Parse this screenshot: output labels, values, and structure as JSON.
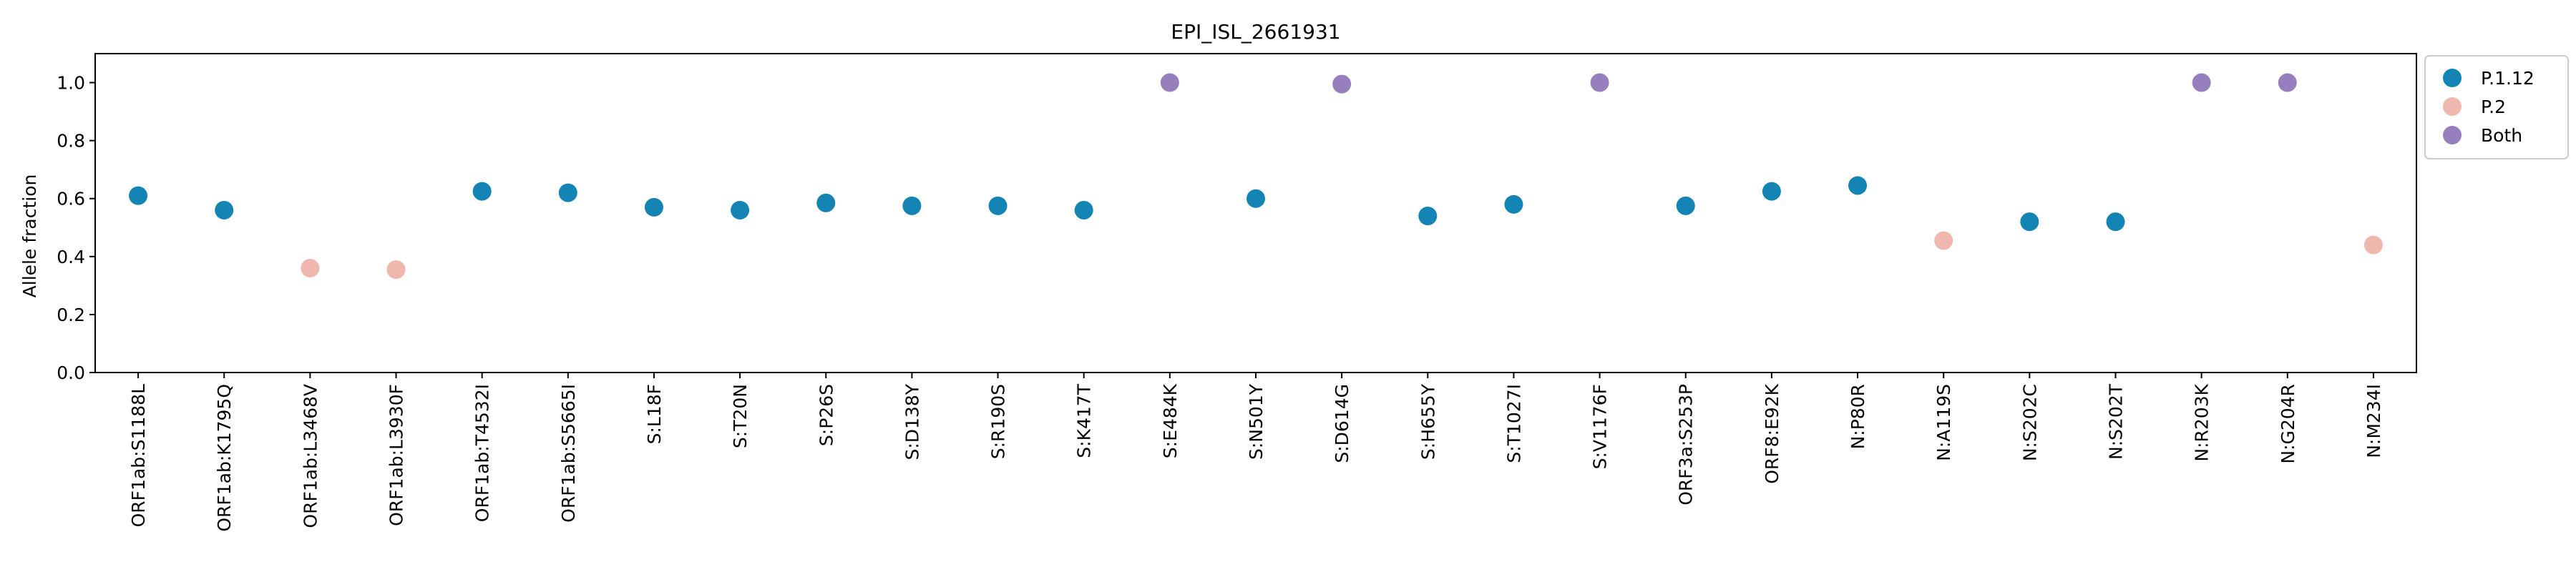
{
  "chart_data": {
    "type": "scatter",
    "title": "EPI_ISL_2661931",
    "xlabel": "",
    "ylabel": "Allele fraction",
    "ylim": [
      0,
      1.1
    ],
    "yticks": [
      0.0,
      0.2,
      0.4,
      0.6,
      0.8,
      1.0
    ],
    "ytick_labels": [
      "0.0",
      "0.2",
      "0.4",
      "0.6",
      "0.8",
      "1.0"
    ],
    "grid": false,
    "legend_position": "top-right, outside plot",
    "categories": [
      "ORF1ab:S1188L",
      "ORF1ab:K1795Q",
      "ORF1ab:L3468V",
      "ORF1ab:L3930F",
      "ORF1ab:T4532I",
      "ORF1ab:S5665I",
      "S:L18F",
      "S:T20N",
      "S:P26S",
      "S:D138Y",
      "S:R190S",
      "S:K417T",
      "S:E484K",
      "S:N501Y",
      "S:D614G",
      "S:H655Y",
      "S:T1027I",
      "S:V1176F",
      "ORF3a:S253P",
      "ORF8:E92K",
      "N:P80R",
      "N:A119S",
      "N:S202C",
      "N:S202T",
      "N:R203K",
      "N:G204R",
      "N:M234I"
    ],
    "values": [
      0.61,
      0.56,
      0.36,
      0.355,
      0.625,
      0.62,
      0.57,
      0.56,
      0.585,
      0.575,
      0.575,
      0.56,
      1.0,
      0.6,
      0.995,
      0.54,
      0.58,
      1.0,
      0.575,
      0.625,
      0.645,
      0.455,
      0.52,
      0.52,
      1.0,
      1.0,
      0.44
    ],
    "groups": [
      "P.1.12",
      "P.1.12",
      "P.2",
      "P.2",
      "P.1.12",
      "P.1.12",
      "P.1.12",
      "P.1.12",
      "P.1.12",
      "P.1.12",
      "P.1.12",
      "P.1.12",
      "Both",
      "P.1.12",
      "Both",
      "P.1.12",
      "P.1.12",
      "Both",
      "P.1.12",
      "P.1.12",
      "P.1.12",
      "P.2",
      "P.1.12",
      "P.1.12",
      "Both",
      "Both",
      "P.2"
    ],
    "series": [
      {
        "name": "P.1.12",
        "color": "#1384b3"
      },
      {
        "name": "P.2",
        "color": "#efb8ae"
      },
      {
        "name": "Both",
        "color": "#977fbd"
      }
    ]
  }
}
